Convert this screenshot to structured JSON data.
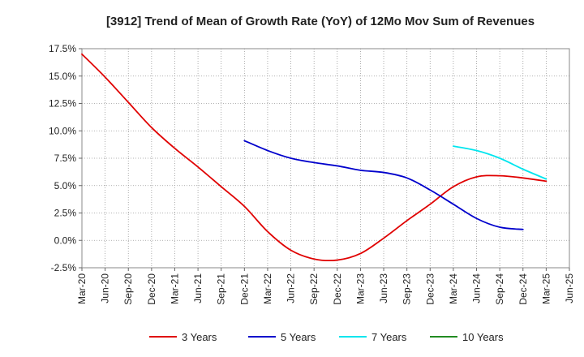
{
  "chart_data": {
    "type": "line",
    "title": "[3912]  Trend of Mean of Growth Rate (YoY) of 12Mo Mov Sum of Revenues",
    "xlabel": "",
    "ylabel": "",
    "x_ticks": [
      "Mar-20",
      "Jun-20",
      "Sep-20",
      "Dec-20",
      "Mar-21",
      "Jun-21",
      "Sep-21",
      "Dec-21",
      "Mar-22",
      "Jun-22",
      "Sep-22",
      "Dec-22",
      "Mar-23",
      "Jun-23",
      "Sep-23",
      "Dec-23",
      "Mar-24",
      "Jun-24",
      "Sep-24",
      "Dec-24",
      "Mar-25",
      "Jun-25"
    ],
    "y_ticks": [
      "17.5%",
      "15.0%",
      "12.5%",
      "10.0%",
      "7.5%",
      "5.0%",
      "2.5%",
      "0.0%",
      "-2.5%"
    ],
    "y_tick_values": [
      17.5,
      15.0,
      12.5,
      10.0,
      7.5,
      5.0,
      2.5,
      0.0,
      -2.5
    ],
    "ylim": [
      -2.5,
      17.5
    ],
    "grid": true,
    "legend_position": "bottom",
    "series": [
      {
        "name": "3 Years",
        "color": "#e00000",
        "start_index": 0,
        "values": [
          17.0,
          14.9,
          12.6,
          10.3,
          8.4,
          6.7,
          4.9,
          3.1,
          0.8,
          -0.9,
          -1.7,
          -1.8,
          -1.2,
          0.2,
          1.8,
          3.3,
          4.9,
          5.8,
          5.9,
          5.7,
          5.4
        ]
      },
      {
        "name": "5 Years",
        "color": "#0000cc",
        "start_index": 7,
        "values": [
          9.1,
          8.2,
          7.5,
          7.1,
          6.8,
          6.4,
          6.2,
          5.7,
          4.6,
          3.3,
          2.0,
          1.2,
          1.0
        ]
      },
      {
        "name": "7 Years",
        "color": "#00e5ee",
        "start_index": 16,
        "values": [
          8.6,
          8.2,
          7.5,
          6.5,
          5.6
        ]
      },
      {
        "name": "10 Years",
        "color": "#228b22",
        "start_index": 0,
        "values": []
      }
    ]
  }
}
